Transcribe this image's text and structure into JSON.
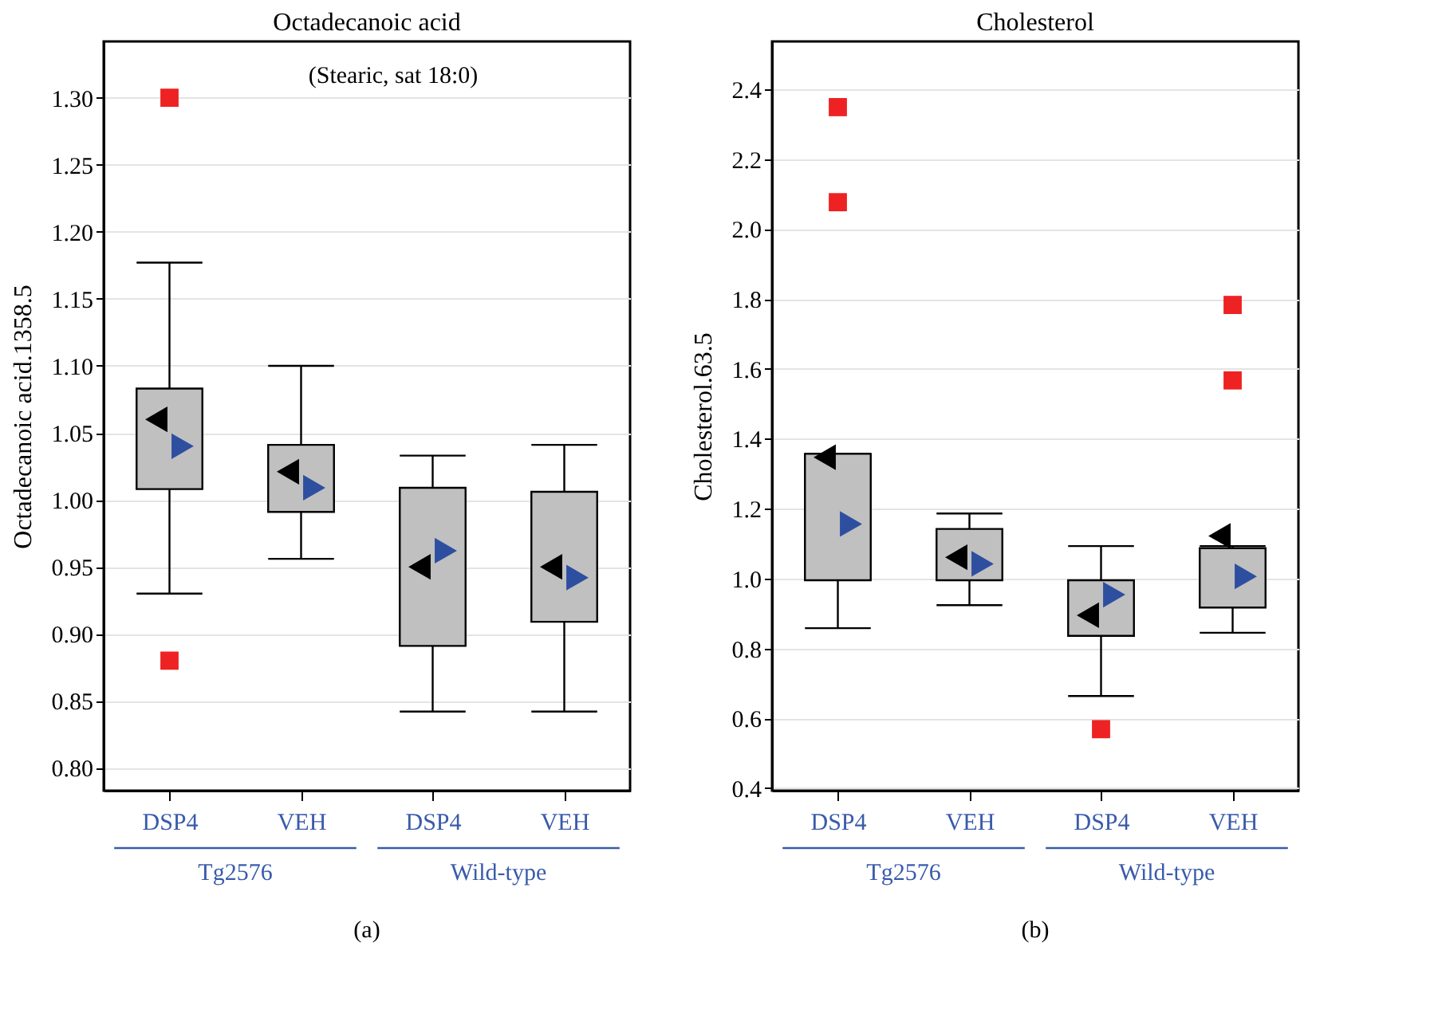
{
  "chart_data": [
    {
      "type": "box",
      "title": "Octadecanoic acid",
      "ylabel": "Octadecanoic acid.1358.5",
      "categories": [
        "DSP4",
        "VEH",
        "DSP4",
        "VEH"
      ],
      "series": [
        {
          "color": "#c0c0c0",
          "boxes": [
            {
              "low": 0.93,
              "q1": 1.008,
              "q3": 1.083,
              "high": 1.177,
              "outliers": [
                1.3,
                0.88
              ]
            },
            {
              "low": 0.956,
              "q1": 0.991,
              "q3": 1.041,
              "high": 1.1
            },
            {
              "low": 0.842,
              "q1": 0.891,
              "q3": 1.009,
              "high": 1.033
            },
            {
              "low": 0.842,
              "q1": 0.909,
              "q3": 1.006,
              "high": 1.041
            }
          ]
        },
        {
          "type": "scatter",
          "marker": "triangle",
          "color": "#000000",
          "values": [
            1.06,
            1.021,
            0.95,
            0.95
          ]
        },
        {
          "type": "scatter",
          "marker": "triangle",
          "color": "#2e4fa0",
          "values": [
            1.04,
            1.009,
            0.962,
            0.942
          ]
        }
      ],
      "ylim": [
        0.783,
        1.342
      ],
      "yticks": [
        {
          "value": 0.8,
          "label": "0.80"
        },
        0.85,
        {
          "value": 0.9,
          "label": "0.90"
        },
        0.95,
        {
          "value": 1,
          "label": "1.00"
        },
        1.05,
        {
          "value": 1.1,
          "label": "1.10"
        },
        1.15,
        {
          "value": 1.2,
          "label": "1.20"
        },
        1.25,
        {
          "value": 1.3,
          "label": "1.30"
        }
      ],
      "grid": "y",
      "annotations": [
        "Tg2576",
        "Wild-type",
        "(a)",
        "(Stearic, sat 18:0)"
      ]
    },
    {
      "type": "box",
      "title": "Cholesterol",
      "ylabel": "Cholesterol.63.5",
      "categories": [
        "DSP4",
        "VEH",
        "DSP4",
        "VEH"
      ],
      "series": [
        {
          "color": "#c0c0c0",
          "boxes": [
            {
              "low": 0.858,
              "q1": 0.995,
              "q3": 1.357,
              "high": 1.357,
              "outliers": [
                2.349,
                2.077
              ]
            },
            {
              "low": 0.924,
              "q1": 0.995,
              "q3": 1.142,
              "high": 1.186
            },
            {
              "low": 0.664,
              "q1": 0.836,
              "q3": 0.995,
              "high": 1.093,
              "outliers": [
                0.569
              ]
            },
            {
              "low": 0.845,
              "q1": 0.917,
              "q3": 1.087,
              "high": 1.093,
              "outliers": [
                1.783,
                1.567
              ]
            }
          ]
        },
        {
          "type": "scatter",
          "marker": "triangle",
          "color": "#000000",
          "values": [
            1.347,
            1.061,
            0.895,
            1.122
          ]
        },
        {
          "type": "scatter",
          "marker": "triangle",
          "color": "#2e4fa0",
          "values": [
            1.156,
            1.042,
            0.954,
            1.006
          ]
        }
      ],
      "ylim": [
        0.393,
        2.537
      ],
      "yticks": [
        0.4,
        0.6,
        0.8,
        {
          "value": 1,
          "label": "1.0"
        },
        1.2,
        1.4,
        1.6,
        1.8,
        {
          "value": 2,
          "label": "2.0"
        },
        2.2,
        2.4
      ],
      "grid": "y",
      "annotations": [
        "Tg2576",
        "Wild-type",
        "(b)"
      ]
    }
  ]
}
